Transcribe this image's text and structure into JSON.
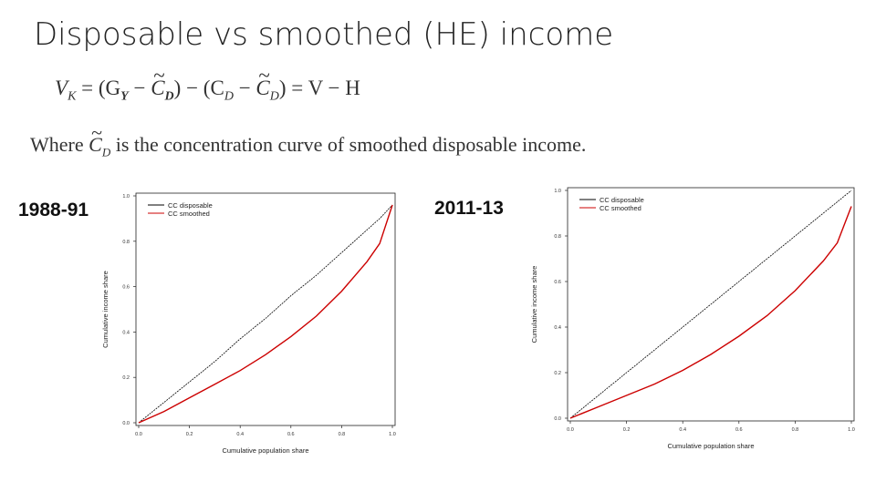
{
  "slide": {
    "title": "Disposable vs smoothed (HE) income",
    "formula_lhs": "V",
    "formula_lhs_sub": "K",
    "formula_rhs": " = (G",
    "formula_gy_sub": "Y",
    "formula_part2": " − ",
    "formula_c": "C",
    "formula_d_sub": "D",
    "formula_part3": ") − (C",
    "formula_part4": " − ",
    "formula_part5": ") = V − H",
    "where_prefix": "Where ",
    "where_suffix": " is the concentration curve of smoothed disposable income."
  },
  "chart_data": [
    {
      "type": "line",
      "period_label": "1988-91",
      "xlabel": "Cumulative population share",
      "ylabel": "Cumulative income share",
      "xlim": [
        0,
        1
      ],
      "ylim": [
        0,
        1
      ],
      "x_ticks": [
        "0.0",
        "0.2",
        "0.4",
        "0.6",
        "0.8",
        "1.0"
      ],
      "y_ticks": [
        "0.0",
        "0.2",
        "0.4",
        "0.6",
        "0.8",
        "1.0"
      ],
      "legend_position": "top-left",
      "series": [
        {
          "name": "CC disposable",
          "color": "#000000",
          "x": [
            0,
            0.1,
            0.2,
            0.3,
            0.4,
            0.5,
            0.6,
            0.7,
            0.8,
            0.9,
            0.95,
            1.0
          ],
          "y": [
            0,
            0.09,
            0.18,
            0.27,
            0.37,
            0.46,
            0.56,
            0.65,
            0.75,
            0.85,
            0.9,
            0.96
          ]
        },
        {
          "name": "CC smoothed",
          "color": "#cc0000",
          "x": [
            0,
            0.1,
            0.2,
            0.3,
            0.4,
            0.5,
            0.6,
            0.7,
            0.8,
            0.9,
            0.95,
            1.0
          ],
          "y": [
            0,
            0.05,
            0.11,
            0.17,
            0.23,
            0.3,
            0.38,
            0.47,
            0.58,
            0.71,
            0.79,
            0.96
          ]
        }
      ]
    },
    {
      "type": "line",
      "period_label": "2011-13",
      "xlabel": "Cumulative population share",
      "ylabel": "Cumulative income share",
      "xlim": [
        0,
        1
      ],
      "ylim": [
        0,
        1
      ],
      "x_ticks": [
        "0.0",
        "0.2",
        "0.4",
        "0.6",
        "0.8",
        "1.0"
      ],
      "y_ticks": [
        "0.0",
        "0.2",
        "0.4",
        "0.6",
        "0.8",
        "1.0"
      ],
      "legend_position": "top-left",
      "series": [
        {
          "name": "CC disposable",
          "color": "#000000",
          "x": [
            0,
            0.1,
            0.2,
            0.3,
            0.4,
            0.5,
            0.6,
            0.7,
            0.8,
            0.9,
            1.0
          ],
          "y": [
            0,
            0.1,
            0.2,
            0.3,
            0.4,
            0.5,
            0.6,
            0.7,
            0.8,
            0.9,
            1.0
          ]
        },
        {
          "name": "CC smoothed",
          "color": "#cc0000",
          "x": [
            0,
            0.1,
            0.2,
            0.3,
            0.4,
            0.5,
            0.6,
            0.7,
            0.8,
            0.9,
            0.95,
            1.0
          ],
          "y": [
            0,
            0.05,
            0.1,
            0.15,
            0.21,
            0.28,
            0.36,
            0.45,
            0.56,
            0.69,
            0.77,
            0.93
          ]
        }
      ]
    }
  ]
}
